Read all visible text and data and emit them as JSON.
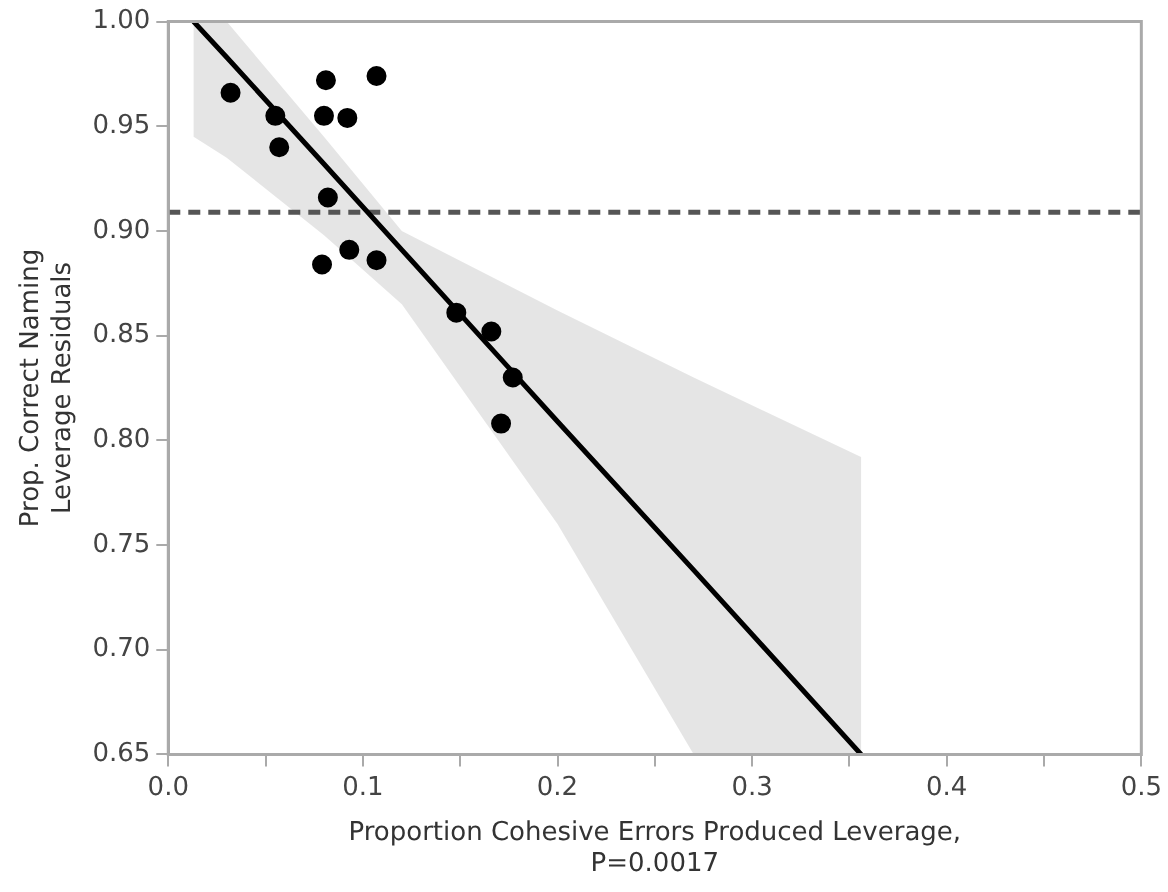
{
  "chart_data": {
    "type": "scatter",
    "xlabel": "Proportion Cohesive Errors Produced Leverage,\nP=0.0017",
    "ylabel": "Prop. Correct Naming\nLeverage Residuals",
    "xlim": [
      0,
      0.5
    ],
    "ylim": [
      0.65,
      1.0
    ],
    "xticks": [
      {
        "value": 0,
        "label": "0.0"
      },
      {
        "value": 0.05,
        "label": null
      },
      {
        "value": 0.1,
        "label": "0.1"
      },
      {
        "value": 0.15,
        "label": null
      },
      {
        "value": 0.2,
        "label": "0.2"
      },
      {
        "value": 0.25,
        "label": null
      },
      {
        "value": 0.3,
        "label": "0.3"
      },
      {
        "value": 0.35,
        "label": null
      },
      {
        "value": 0.4,
        "label": "0.4"
      },
      {
        "value": 0.45,
        "label": null
      },
      {
        "value": 0.5,
        "label": "0.5"
      }
    ],
    "yticks": [
      {
        "value": 0.65,
        "label": "0.65"
      },
      {
        "value": 0.7,
        "label": "0.70"
      },
      {
        "value": 0.75,
        "label": "0.75"
      },
      {
        "value": 0.8,
        "label": "0.80"
      },
      {
        "value": 0.85,
        "label": "0.85"
      },
      {
        "value": 0.9,
        "label": "0.90"
      },
      {
        "value": 0.95,
        "label": "0.95"
      },
      {
        "value": 1.0,
        "label": "1.00"
      }
    ],
    "grid": false,
    "legend": false,
    "marker": "circle",
    "ref_lines": [
      {
        "axis": "y",
        "value": 0.909,
        "color": "#555555",
        "line_style": "dashed"
      }
    ],
    "series": [
      {
        "type": "line",
        "color": "#000000",
        "marker": "none",
        "line_style": "solid",
        "x": [
          0.013,
          0.03,
          0.08,
          0.12,
          0.2,
          0.27,
          0.356
        ],
        "values": [
          1.0,
          0.983,
          0.932,
          0.891,
          0.809,
          0.738,
          0.65
        ],
        "lower": [
          0.945,
          0.935,
          0.898,
          0.865,
          0.76,
          0.65,
          0.65
        ],
        "upper": [
          1.0,
          1.0,
          0.945,
          0.9,
          0.862,
          0.83,
          0.792
        ]
      },
      {
        "type": "scatter",
        "color": "#000000",
        "x": [
          0.032,
          0.055,
          0.057,
          0.081,
          0.08,
          0.092,
          0.107,
          0.082,
          0.079,
          0.093,
          0.107,
          0.148,
          0.166,
          0.177,
          0.171
        ],
        "values": [
          0.966,
          0.955,
          0.94,
          0.972,
          0.955,
          0.954,
          0.974,
          0.916,
          0.884,
          0.891,
          0.886,
          0.861,
          0.852,
          0.83,
          0.808
        ]
      }
    ]
  }
}
